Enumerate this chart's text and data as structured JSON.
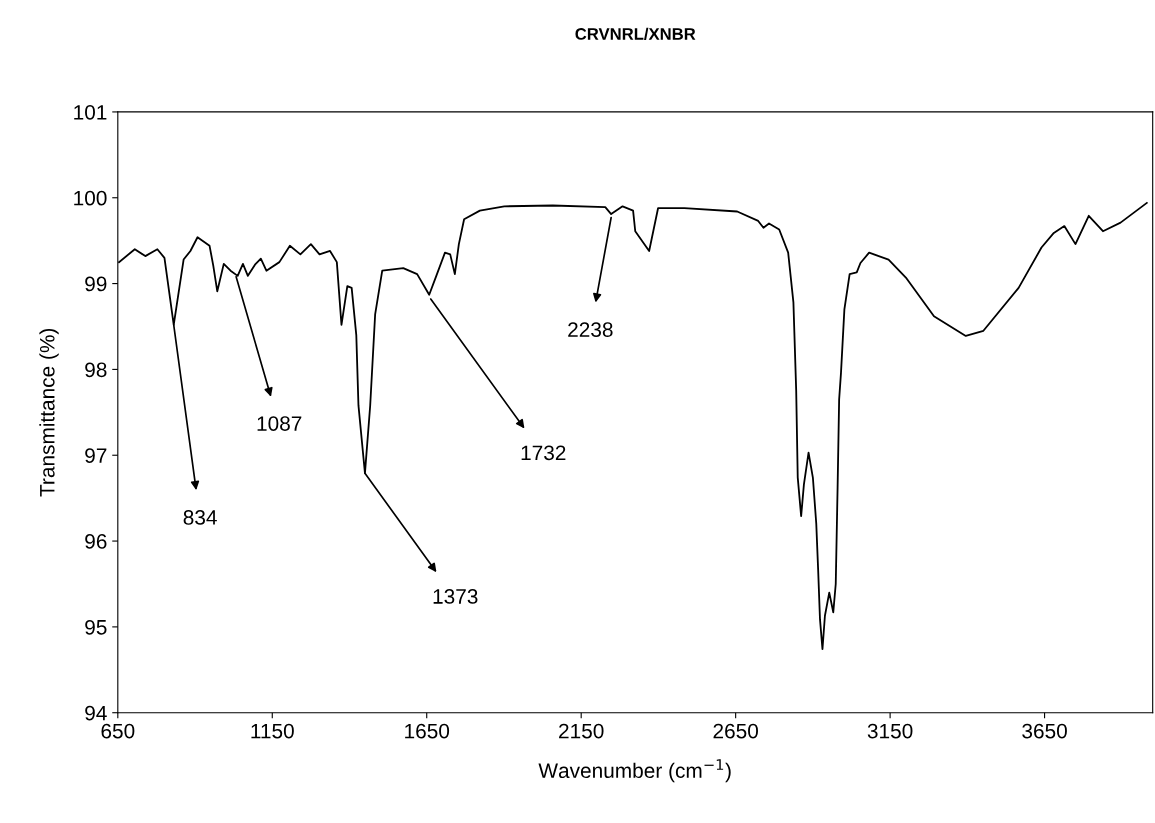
{
  "chart_data": {
    "type": "line",
    "title": "CRVNRL/XNBR",
    "xlabel": "Wavenumber (cm$^{−1}$)",
    "ylabel": "Transmittance (%)",
    "x": [
      654,
      705,
      739,
      778,
      801,
      831,
      863,
      885,
      908,
      947,
      959,
      972,
      993,
      1015,
      1038,
      1055,
      1071,
      1094,
      1113,
      1131,
      1173,
      1207,
      1241,
      1275,
      1303,
      1337,
      1359,
      1374,
      1393,
      1407,
      1422,
      1429,
      1450,
      1467,
      1483,
      1506,
      1574,
      1619,
      1658,
      1681,
      1709,
      1726,
      1741,
      1754,
      1771,
      1822,
      1901,
      2058,
      2228,
      2247,
      2284,
      2318,
      2325,
      2370,
      2399,
      2484,
      2655,
      2723,
      2740,
      2758,
      2791,
      2820,
      2837,
      2846,
      2851,
      2862,
      2871,
      2886,
      2900,
      2911,
      2917,
      2923,
      2931,
      2939,
      2953,
      2966,
      2974,
      2980,
      2985,
      2991,
      3002,
      3019,
      3042,
      3054,
      3082,
      3145,
      3201,
      3292,
      3395,
      3452,
      3566,
      3640,
      3680,
      3714,
      3750,
      3793,
      3839,
      3896,
      3981
    ],
    "series": [
      {
        "color": "#000000",
        "values": [
          99.25,
          99.4,
          99.32,
          99.4,
          99.3,
          98.52,
          99.28,
          99.38,
          99.54,
          99.44,
          99.21,
          98.91,
          99.23,
          99.15,
          99.09,
          99.23,
          99.09,
          99.22,
          99.29,
          99.15,
          99.25,
          99.44,
          99.34,
          99.46,
          99.34,
          99.38,
          99.25,
          98.52,
          98.97,
          98.95,
          98.4,
          97.58,
          96.79,
          97.58,
          98.64,
          99.15,
          99.18,
          99.11,
          98.87,
          99.09,
          99.36,
          99.34,
          99.11,
          99.46,
          99.75,
          99.85,
          99.9,
          99.91,
          99.89,
          99.81,
          99.9,
          99.85,
          99.61,
          99.38,
          99.88,
          99.88,
          99.84,
          99.73,
          99.65,
          99.7,
          99.63,
          99.36,
          98.78,
          97.75,
          96.74,
          96.29,
          96.66,
          97.03,
          96.74,
          96.2,
          95.67,
          95.09,
          94.74,
          95.13,
          95.4,
          95.17,
          95.5,
          96.62,
          97.65,
          97.96,
          98.7,
          99.11,
          99.13,
          99.24,
          99.36,
          99.28,
          99.07,
          98.62,
          98.39,
          98.45,
          98.95,
          99.42,
          99.59,
          99.67,
          99.46,
          99.79,
          99.61,
          99.71,
          99.94
        ]
      }
    ],
    "xlim": [
      650,
      4000
    ],
    "xticks": [
      650,
      1150,
      1650,
      2150,
      2650,
      3150,
      3650
    ],
    "ylim": [
      94,
      101
    ],
    "yticks": [
      94,
      95,
      96,
      97,
      98,
      99,
      100,
      101
    ],
    "grid": false,
    "legend": false,
    "marker": "none",
    "line_style": "solid",
    "annotations": [
      {
        "text": "834",
        "x": 831,
        "y": 98.52
      },
      {
        "text": "1087",
        "x": 1033,
        "y": 99.08
      },
      {
        "text": "1373",
        "x": 1450,
        "y": 96.79
      },
      {
        "text": "1732",
        "x": 1663,
        "y": 98.82
      },
      {
        "text": "2238",
        "x": 2247,
        "y": 99.77
      }
    ]
  }
}
